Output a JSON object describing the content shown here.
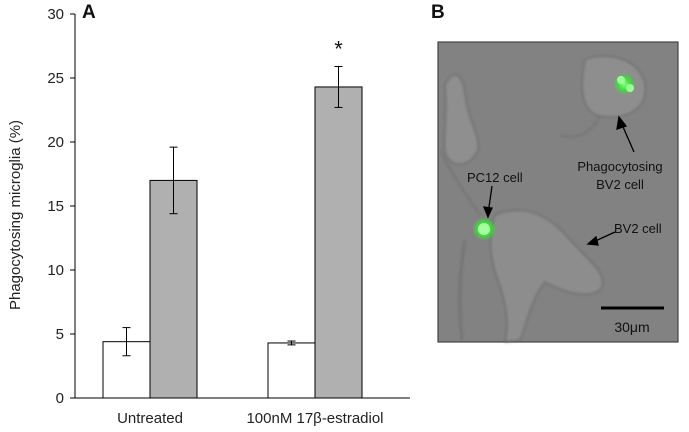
{
  "panel_a_label": "A",
  "panel_b_label": "B",
  "chart_data": {
    "type": "bar",
    "ylabel": "Phagocytosing microglia (%)",
    "ylim": [
      0,
      30
    ],
    "yticks": [
      0,
      5,
      10,
      15,
      20,
      25,
      30
    ],
    "categories": [
      "Untreated",
      "100nM 17β-estradiol"
    ],
    "series": [
      {
        "values": [
          4.4,
          4.3
        ],
        "errors": [
          1.1,
          0.15
        ],
        "color": "#ffffff"
      },
      {
        "values": [
          17.0,
          24.3
        ],
        "errors": [
          2.6,
          1.6
        ],
        "color": "#b0b0b0"
      }
    ],
    "annotations": [
      {
        "text": "*",
        "category": 1,
        "series": 1
      }
    ],
    "grid": false,
    "legend": "none"
  },
  "micrograph": {
    "labels": {
      "pc12": "PC12 cell",
      "phago_line1": "Phagocytosing",
      "phago_line2": "BV2 cell",
      "bv2": "BV2 cell"
    },
    "scale_bar": "30μm"
  }
}
